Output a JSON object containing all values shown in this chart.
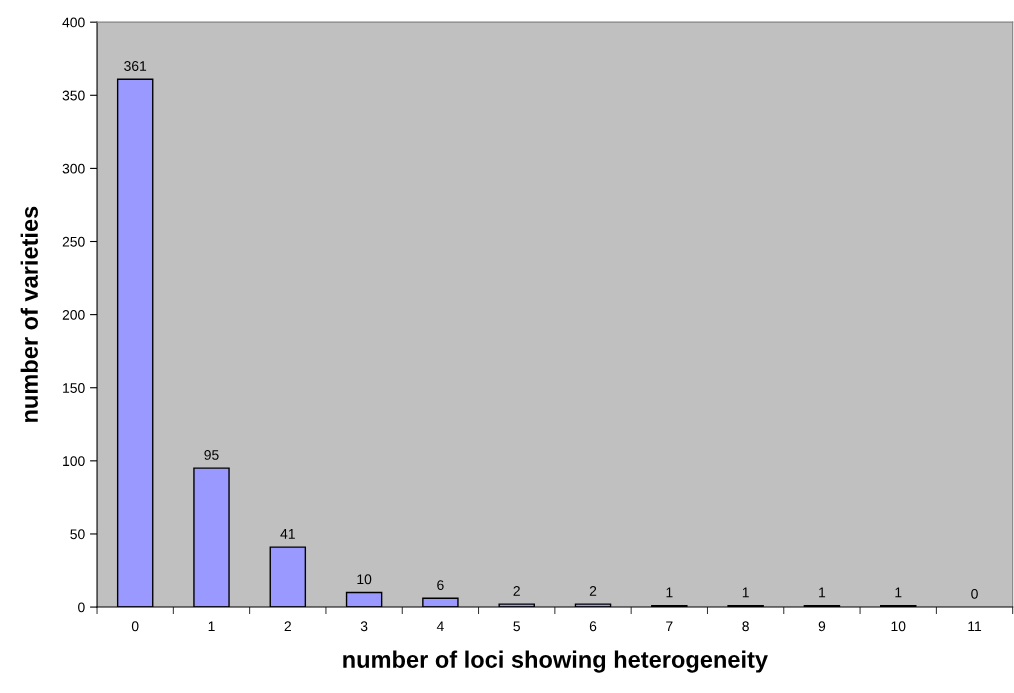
{
  "chart_data": {
    "type": "bar",
    "xlabel": "number of loci showing heterogeneity",
    "ylabel": "number of varieties",
    "categories": [
      "0",
      "1",
      "2",
      "3",
      "4",
      "5",
      "6",
      "7",
      "8",
      "9",
      "10",
      "11"
    ],
    "values": [
      361,
      95,
      41,
      10,
      6,
      2,
      2,
      1,
      1,
      1,
      1,
      0
    ],
    "color": "#9999ff",
    "ylim": [
      0,
      400
    ],
    "yticks": [
      0,
      50,
      100,
      150,
      200,
      250,
      300,
      350,
      400
    ],
    "grid": false,
    "data_labels": true
  }
}
